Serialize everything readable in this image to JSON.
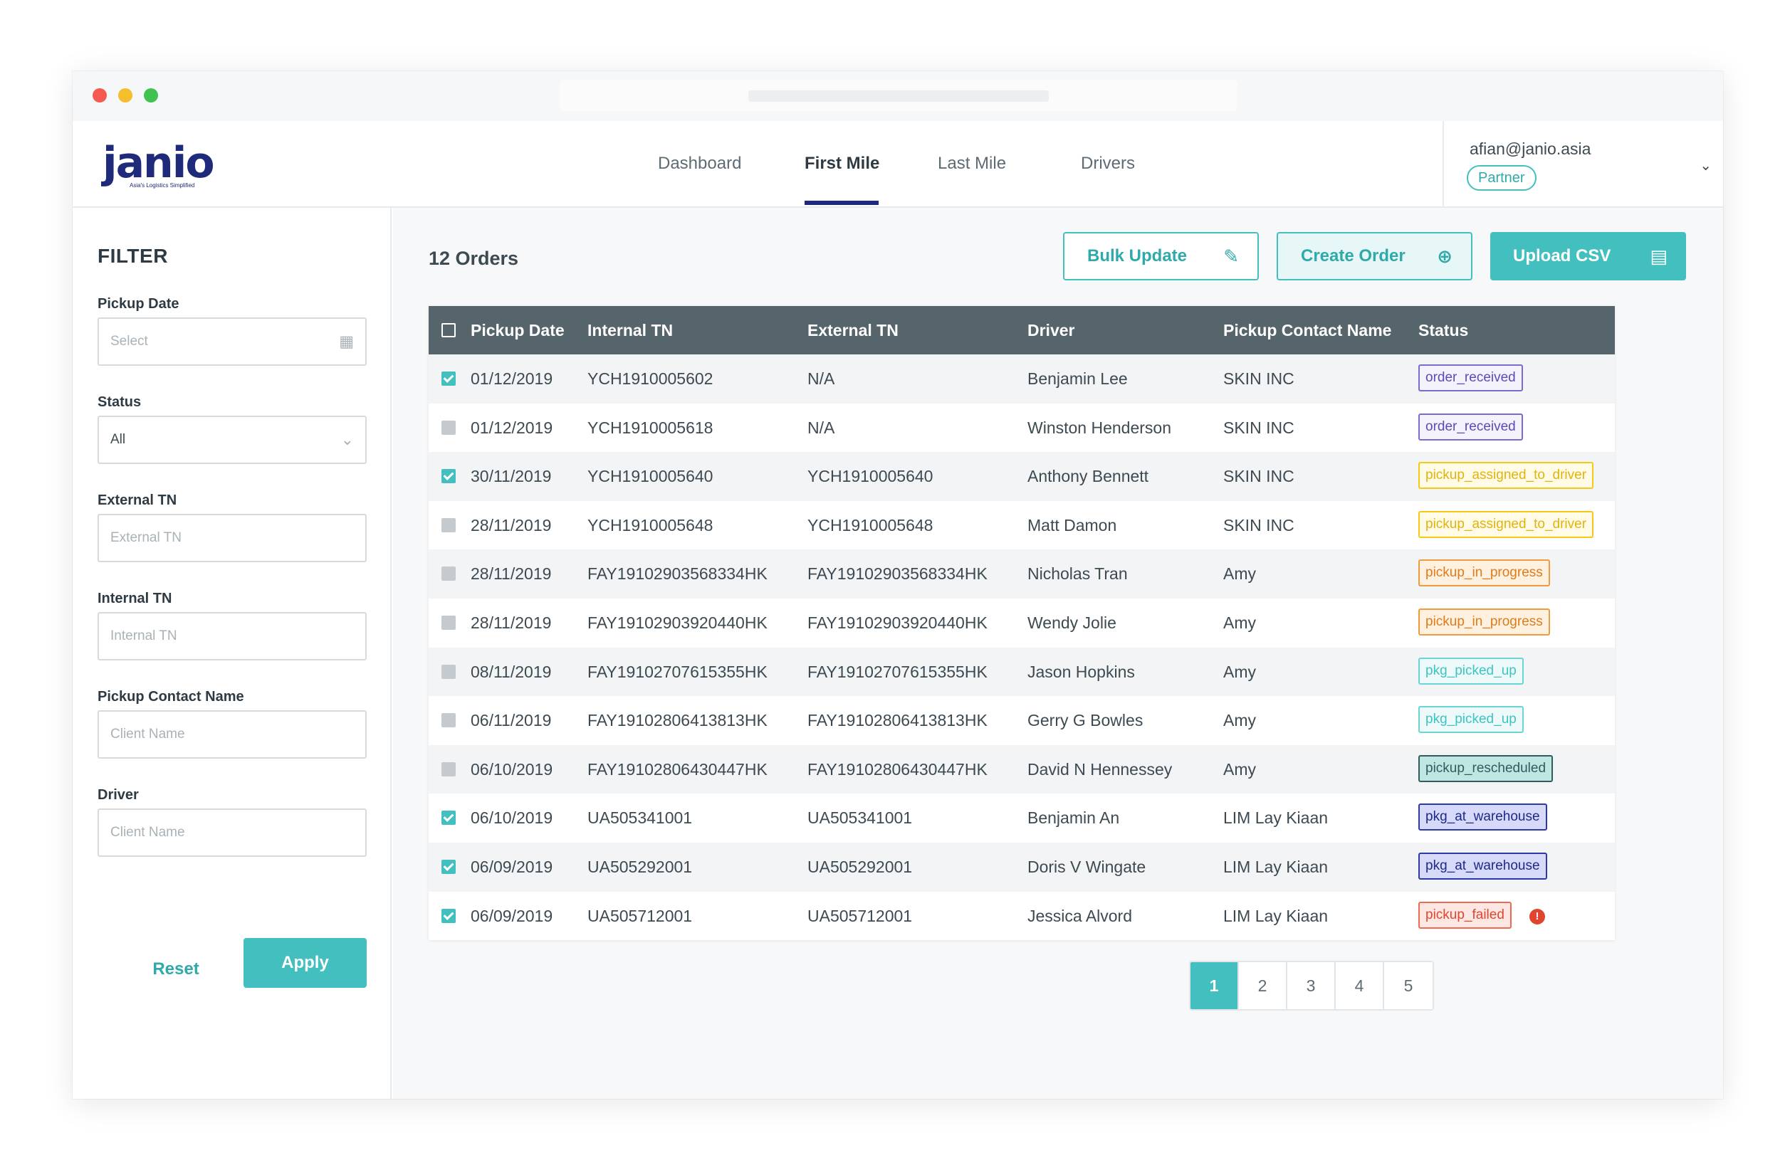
{
  "nav": {
    "brand": "janio",
    "brand_tagline": "Asia's Logistics Simplified",
    "items": [
      {
        "label": "Dashboard",
        "active": false
      },
      {
        "label": "First Mile",
        "active": true
      },
      {
        "label": "Last Mile",
        "active": false
      },
      {
        "label": "Drivers",
        "active": false
      }
    ]
  },
  "user": {
    "email": "afian@janio.asia",
    "role": "Partner"
  },
  "filter": {
    "title": "FILTER",
    "pickup_date": {
      "label": "Pickup Date",
      "placeholder": "Select"
    },
    "status": {
      "label": "Status",
      "value": "All"
    },
    "external_tn": {
      "label": "External TN",
      "placeholder": "External TN"
    },
    "internal_tn": {
      "label": "Internal TN",
      "placeholder": "Internal TN"
    },
    "pickup_contact": {
      "label": "Pickup Contact Name",
      "placeholder": "Client Name"
    },
    "driver": {
      "label": "Driver",
      "placeholder": "Client Name"
    },
    "reset_label": "Reset",
    "apply_label": "Apply"
  },
  "toolbar": {
    "orders_count": "12 Orders",
    "bulk_update_label": "Bulk Update",
    "create_order_label": "Create Order",
    "upload_csv_label": "Upload CSV"
  },
  "table": {
    "columns": [
      "Pickup Date",
      "Internal TN",
      "External TN",
      "Driver",
      "Pickup Contact Name",
      "Status"
    ],
    "rows": [
      {
        "checked": true,
        "date": "01/12/2019",
        "internal": "YCH1910005602",
        "external": "N/A",
        "driver": "Benjamin Lee",
        "contact": "SKIN INC",
        "status": "order_received",
        "kind": "received"
      },
      {
        "checked": false,
        "date": "01/12/2019",
        "internal": "YCH1910005618",
        "external": "N/A",
        "driver": "Winston Henderson",
        "contact": "SKIN INC",
        "status": "order_received",
        "kind": "received"
      },
      {
        "checked": true,
        "date": "30/11/2019",
        "internal": "YCH1910005640",
        "external": "YCH1910005640",
        "driver": "Anthony Bennett",
        "contact": "SKIN INC",
        "status": "pickup_assigned_to_driver",
        "kind": "assigned"
      },
      {
        "checked": false,
        "date": "28/11/2019",
        "internal": "YCH1910005648",
        "external": "YCH1910005648",
        "driver": "Matt Damon",
        "contact": "SKIN INC",
        "status": "pickup_assigned_to_driver",
        "kind": "assigned"
      },
      {
        "checked": false,
        "date": "28/11/2019",
        "internal": "FAY19102903568334HK",
        "external": "FAY19102903568334HK",
        "driver": "Nicholas Tran",
        "contact": "Amy",
        "status": "pickup_in_progress",
        "kind": "progress"
      },
      {
        "checked": false,
        "date": "28/11/2019",
        "internal": "FAY19102903920440HK",
        "external": "FAY19102903920440HK",
        "driver": "Wendy Jolie",
        "contact": "Amy",
        "status": "pickup_in_progress",
        "kind": "progress"
      },
      {
        "checked": false,
        "date": "08/11/2019",
        "internal": "FAY19102707615355HK",
        "external": "FAY19102707615355HK",
        "driver": "Jason Hopkins",
        "contact": "Amy",
        "status": "pkg_picked_up",
        "kind": "picked"
      },
      {
        "checked": false,
        "date": "06/11/2019",
        "internal": "FAY19102806413813HK",
        "external": "FAY19102806413813HK",
        "driver": "Gerry G Bowles",
        "contact": "Amy",
        "status": "pkg_picked_up",
        "kind": "picked"
      },
      {
        "checked": false,
        "date": "06/10/2019",
        "internal": "FAY19102806430447HK",
        "external": "FAY19102806430447HK",
        "driver": "David N Hennessey",
        "contact": "Amy",
        "status": "pickup_rescheduled",
        "kind": "rescheduled"
      },
      {
        "checked": true,
        "date": "06/10/2019",
        "internal": "UA505341001",
        "external": "UA505341001",
        "driver": "Benjamin An",
        "contact": "LIM Lay Kiaan",
        "status": "pkg_at_warehouse",
        "kind": "warehouse"
      },
      {
        "checked": true,
        "date": "06/09/2019",
        "internal": "UA505292001",
        "external": "UA505292001",
        "driver": "Doris V Wingate",
        "contact": "LIM Lay Kiaan",
        "status": "pkg_at_warehouse",
        "kind": "warehouse"
      },
      {
        "checked": true,
        "date": "06/09/2019",
        "internal": "UA505712001",
        "external": "UA505712001",
        "driver": "Jessica Alvord",
        "contact": "LIM Lay Kiaan",
        "status": "pickup_failed",
        "kind": "failed",
        "alert": "!"
      }
    ]
  },
  "pagination": {
    "pages": [
      "1",
      "2",
      "3",
      "4",
      "5"
    ],
    "current": "1"
  },
  "colors": {
    "accent": "#44bfbf",
    "brand": "#1f2a7a",
    "header": "#56646c"
  }
}
